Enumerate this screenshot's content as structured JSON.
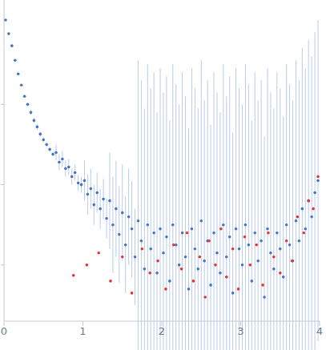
{
  "chart_data": {
    "type": "scatter",
    "xlim": [
      0,
      4
    ],
    "xticks": [
      0,
      1,
      2,
      3,
      4
    ],
    "ylim": [
      -3.7,
      0.3
    ],
    "yticks": [
      -3,
      -2,
      -1
    ],
    "tick_labels": "x",
    "grid": false,
    "series": [
      {
        "color": "#4472c4",
        "marker": "circle",
        "x": [
          0.02,
          0.06,
          0.1,
          0.14,
          0.18,
          0.22,
          0.26,
          0.3,
          0.34,
          0.38,
          0.42,
          0.46,
          0.5,
          0.54,
          0.58,
          0.62,
          0.66,
          0.7,
          0.74,
          0.78,
          0.82,
          0.86,
          0.9,
          0.94,
          0.98,
          1.02,
          1.06,
          1.1,
          1.14,
          1.18,
          1.22,
          1.26,
          1.3,
          1.34,
          1.38,
          1.42,
          1.46,
          1.5,
          1.54,
          1.58,
          1.62,
          1.66,
          1.7,
          1.74,
          1.78,
          1.82,
          1.86,
          1.9,
          1.94,
          1.98,
          2.02,
          2.06,
          2.1,
          2.14,
          2.18,
          2.22,
          2.26,
          2.3,
          2.34,
          2.38,
          2.42,
          2.46,
          2.5,
          2.54,
          2.58,
          2.62,
          2.66,
          2.7,
          2.74,
          2.78,
          2.82,
          2.86,
          2.9,
          2.94,
          2.98,
          3.02,
          3.06,
          3.1,
          3.14,
          3.18,
          3.22,
          3.26,
          3.3,
          3.34,
          3.38,
          3.42,
          3.46,
          3.5,
          3.54,
          3.58,
          3.62,
          3.66,
          3.7,
          3.74,
          3.78,
          3.82,
          3.86,
          3.9,
          3.94,
          3.98
        ],
        "values": [
          0.05,
          -0.12,
          -0.27,
          -0.45,
          -0.62,
          -0.76,
          -0.9,
          -1.0,
          -1.1,
          -1.2,
          -1.28,
          -1.37,
          -1.44,
          -1.5,
          -1.56,
          -1.62,
          -1.6,
          -1.72,
          -1.68,
          -1.8,
          -1.78,
          -1.9,
          -1.85,
          -1.98,
          -2.0,
          -1.95,
          -2.12,
          -2.05,
          -2.25,
          -2.1,
          -2.3,
          -2.18,
          -2.42,
          -2.2,
          -2.5,
          -2.3,
          -2.62,
          -2.35,
          -2.75,
          -2.4,
          -2.55,
          -2.9,
          -2.45,
          -2.7,
          -3.05,
          -2.5,
          -2.8,
          -2.6,
          -3.1,
          -2.55,
          -2.85,
          -2.65,
          -3.2,
          -2.5,
          -2.75,
          -3.0,
          -2.6,
          -2.9,
          -3.3,
          -2.55,
          -2.8,
          -3.05,
          -2.45,
          -2.95,
          -2.7,
          -3.25,
          -2.6,
          -2.85,
          -3.1,
          -2.5,
          -2.9,
          -2.65,
          -3.35,
          -2.55,
          -2.8,
          -3.0,
          -2.5,
          -2.75,
          -3.2,
          -2.6,
          -2.95,
          -2.7,
          -3.4,
          -2.55,
          -2.85,
          -3.05,
          -2.6,
          -2.8,
          -3.15,
          -2.5,
          -2.75,
          -2.95,
          -2.45,
          -2.7,
          -2.3,
          -2.55,
          -2.2,
          -2.4,
          -2.1,
          -1.95
        ],
        "errors": [
          0.01,
          0.01,
          0.01,
          0.01,
          0.01,
          0.01,
          0.01,
          0.01,
          0.03,
          0.03,
          0.03,
          0.03,
          0.03,
          0.03,
          0.03,
          0.03,
          0.1,
          0.1,
          0.1,
          0.1,
          0.1,
          0.1,
          0.1,
          0.1,
          0.1,
          0.25,
          0.25,
          0.25,
          0.25,
          0.25,
          0.25,
          0.25,
          0.25,
          0.6,
          0.6,
          0.6,
          0.6,
          0.6,
          0.6,
          0.6,
          0.6,
          0.6,
          2.0,
          2.0,
          2.0,
          2.0,
          2.0,
          2.0,
          2.0,
          2.0,
          2.0,
          2.0,
          2.0,
          2.0,
          2.0,
          2.0,
          2.0,
          2.0,
          2.0,
          2.0,
          2.0,
          2.0,
          2.0,
          2.0,
          2.0,
          2.0,
          2.0,
          2.0,
          2.0,
          2.0,
          2.0,
          2.0,
          2.0,
          2.0,
          2.0,
          2.0,
          2.0,
          2.0,
          2.0,
          2.0,
          2.0,
          2.0,
          2.0,
          2.0,
          2.0,
          2.0,
          2.0,
          2.0,
          2.0,
          2.0,
          2.0,
          2.0,
          2.0,
          2.0,
          2.0,
          2.0,
          2.0,
          2.0,
          2.0,
          2.0
        ]
      },
      {
        "color": "#e8312f",
        "marker": "circle",
        "x": [
          0.88,
          1.05,
          1.2,
          1.35,
          1.5,
          1.62,
          1.75,
          1.85,
          1.95,
          2.05,
          2.15,
          2.25,
          2.32,
          2.4,
          2.48,
          2.55,
          2.6,
          2.68,
          2.75,
          2.82,
          2.9,
          2.97,
          3.05,
          3.12,
          3.2,
          3.28,
          3.35,
          3.42,
          3.5,
          3.58,
          3.65,
          3.72,
          3.8,
          3.86,
          3.92,
          3.98
        ],
        "values": [
          -3.13,
          -3.0,
          -2.85,
          -3.2,
          -2.9,
          -3.35,
          -2.8,
          -3.1,
          -2.95,
          -3.3,
          -2.75,
          -3.05,
          -2.6,
          -3.2,
          -2.9,
          -3.4,
          -2.7,
          -3.0,
          -2.55,
          -3.15,
          -2.8,
          -3.3,
          -2.65,
          -3.0,
          -2.75,
          -3.25,
          -2.6,
          -2.9,
          -3.1,
          -2.7,
          -2.95,
          -2.4,
          -2.6,
          -2.2,
          -2.3,
          -1.9
        ]
      }
    ]
  }
}
